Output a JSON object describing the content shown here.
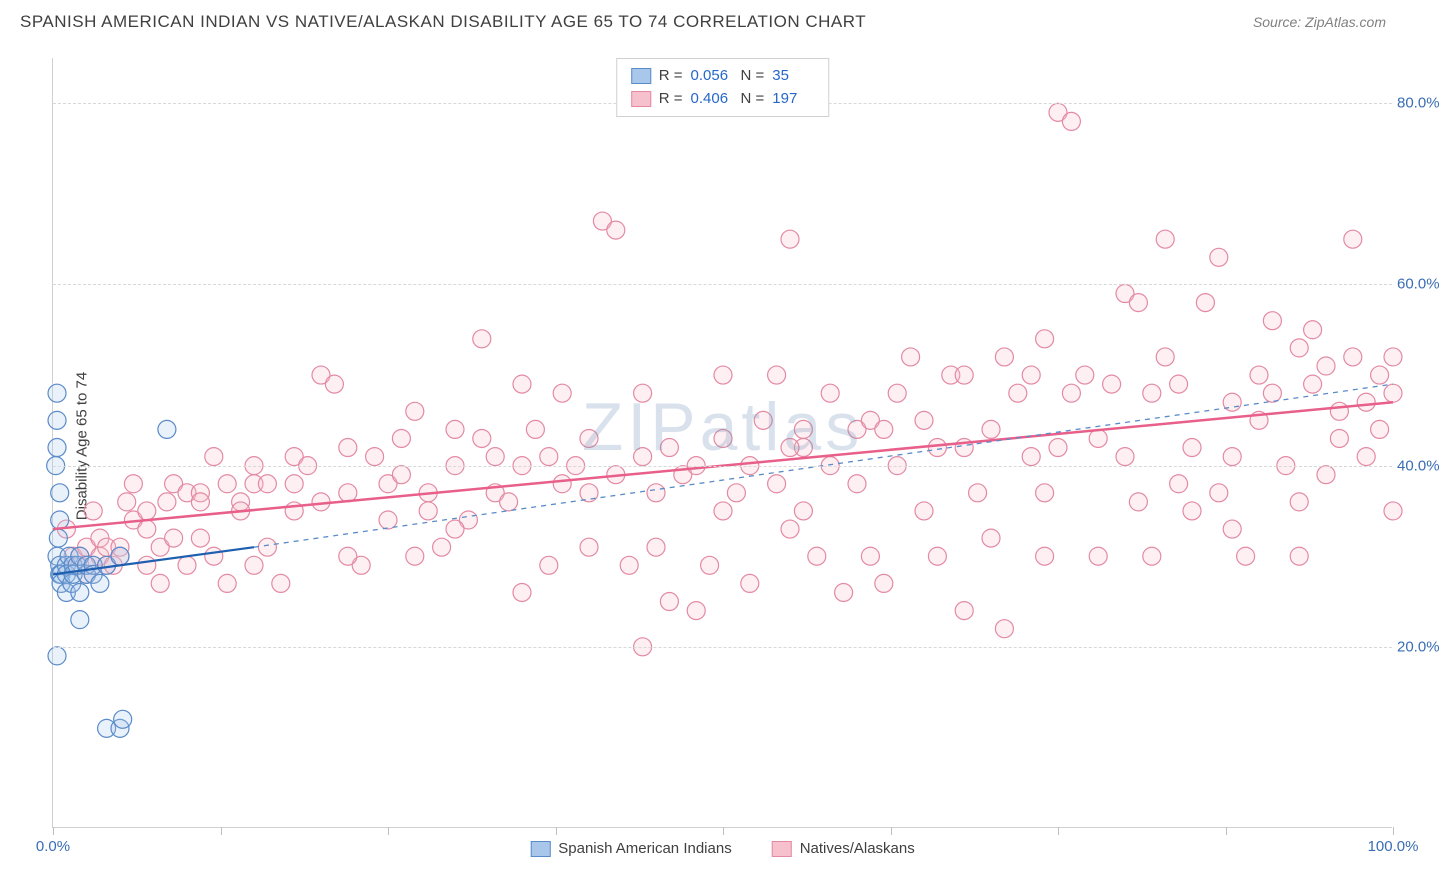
{
  "header": {
    "title": "SPANISH AMERICAN INDIAN VS NATIVE/ALASKAN DISABILITY AGE 65 TO 74 CORRELATION CHART",
    "source_label": "Source:",
    "source_value": "ZipAtlas.com"
  },
  "chart": {
    "type": "scatter",
    "ylabel": "Disability Age 65 to 74",
    "watermark": "ZIPatlas",
    "xlim": [
      0,
      100
    ],
    "ylim": [
      0,
      85
    ],
    "y_gridlines": [
      20,
      40,
      60,
      80
    ],
    "y_tick_labels": [
      "20.0%",
      "40.0%",
      "60.0%",
      "80.0%"
    ],
    "x_ticks": [
      0,
      12.5,
      25,
      37.5,
      50,
      62.5,
      75,
      87.5,
      100
    ],
    "x_tick_labels_show": {
      "0": "0.0%",
      "100": "100.0%"
    },
    "background_color": "#ffffff",
    "grid_color": "#d8d8d8",
    "axis_color": "#d0d0d0",
    "tick_label_color": "#3a6db3",
    "marker_radius": 9,
    "marker_stroke_width": 1.2,
    "marker_fill_opacity": 0.25,
    "series": [
      {
        "key": "spanish",
        "label": "Spanish American Indians",
        "color_fill": "#a9c7ea",
        "color_stroke": "#5a8bc9",
        "r": "0.056",
        "n": "35",
        "trend": {
          "x1": 0,
          "y1": 28,
          "x2": 15,
          "y2": 31,
          "color": "#1f5fb0",
          "dash": "none",
          "width": 2.2
        },
        "trend_ext": {
          "x1": 15,
          "y1": 31,
          "x2": 100,
          "y2": 49,
          "color": "#5a8bc9",
          "dash": "5,5",
          "width": 1.3
        },
        "points": [
          [
            0.3,
            48
          ],
          [
            0.3,
            45
          ],
          [
            0.3,
            42
          ],
          [
            0.2,
            40
          ],
          [
            0.5,
            37
          ],
          [
            0.5,
            34
          ],
          [
            0.4,
            32
          ],
          [
            0.3,
            30
          ],
          [
            0.5,
            29
          ],
          [
            0.5,
            28
          ],
          [
            0.6,
            28
          ],
          [
            0.6,
            27
          ],
          [
            1,
            29
          ],
          [
            1,
            28
          ],
          [
            1,
            26
          ],
          [
            1.2,
            30
          ],
          [
            1.4,
            27
          ],
          [
            1.5,
            29
          ],
          [
            1.5,
            28
          ],
          [
            1.8,
            29
          ],
          [
            2,
            30
          ],
          [
            2,
            26
          ],
          [
            2,
            23
          ],
          [
            2.5,
            28
          ],
          [
            2.5,
            29
          ],
          [
            3,
            29
          ],
          [
            3,
            28
          ],
          [
            3.5,
            27
          ],
          [
            4,
            29
          ],
          [
            5,
            30
          ],
          [
            0.3,
            19
          ],
          [
            4,
            11
          ],
          [
            8.5,
            44
          ],
          [
            5,
            11
          ],
          [
            5.2,
            12
          ]
        ]
      },
      {
        "key": "natives",
        "label": "Natives/Alaskans",
        "color_fill": "#f7c0cd",
        "color_stroke": "#e38aa3",
        "r": "0.406",
        "n": "197",
        "trend": {
          "x1": 0,
          "y1": 33,
          "x2": 100,
          "y2": 47,
          "color": "#e85f8a",
          "dash": "none",
          "width": 2.5
        },
        "points": [
          [
            1,
            33
          ],
          [
            1.5,
            30
          ],
          [
            2,
            29
          ],
          [
            2,
            30
          ],
          [
            2.5,
            31
          ],
          [
            2.5,
            28
          ],
          [
            3,
            29
          ],
          [
            3,
            35
          ],
          [
            3.5,
            30
          ],
          [
            3.5,
            32
          ],
          [
            4,
            29
          ],
          [
            4,
            31
          ],
          [
            4.5,
            29
          ],
          [
            5,
            31
          ],
          [
            5,
            30
          ],
          [
            5.5,
            36
          ],
          [
            6,
            38
          ],
          [
            6,
            34
          ],
          [
            7,
            33
          ],
          [
            7,
            29
          ],
          [
            8,
            27
          ],
          [
            8,
            31
          ],
          [
            8.5,
            36
          ],
          [
            9,
            38
          ],
          [
            9,
            32
          ],
          [
            10,
            37
          ],
          [
            10,
            29
          ],
          [
            11,
            37
          ],
          [
            11,
            36
          ],
          [
            12,
            30
          ],
          [
            12,
            41
          ],
          [
            13,
            38
          ],
          [
            13,
            27
          ],
          [
            14,
            36
          ],
          [
            14,
            35
          ],
          [
            15,
            38
          ],
          [
            15,
            40
          ],
          [
            16,
            31
          ],
          [
            16,
            38
          ],
          [
            17,
            27
          ],
          [
            18,
            41
          ],
          [
            18,
            35
          ],
          [
            19,
            40
          ],
          [
            20,
            50
          ],
          [
            20,
            36
          ],
          [
            21,
            49
          ],
          [
            22,
            37
          ],
          [
            22,
            42
          ],
          [
            23,
            29
          ],
          [
            24,
            41
          ],
          [
            25,
            38
          ],
          [
            25,
            34
          ],
          [
            26,
            43
          ],
          [
            27,
            46
          ],
          [
            28,
            37
          ],
          [
            28,
            35
          ],
          [
            29,
            31
          ],
          [
            30,
            44
          ],
          [
            30,
            40
          ],
          [
            31,
            34
          ],
          [
            32,
            43
          ],
          [
            32,
            54
          ],
          [
            33,
            41
          ],
          [
            33,
            37
          ],
          [
            34,
            36
          ],
          [
            35,
            40
          ],
          [
            35,
            26
          ],
          [
            36,
            44
          ],
          [
            37,
            29
          ],
          [
            37,
            41
          ],
          [
            38,
            38
          ],
          [
            38,
            48
          ],
          [
            39,
            40
          ],
          [
            40,
            37
          ],
          [
            40,
            43
          ],
          [
            41,
            67
          ],
          [
            42,
            39
          ],
          [
            42,
            66
          ],
          [
            43,
            29
          ],
          [
            44,
            48
          ],
          [
            44,
            20
          ],
          [
            45,
            37
          ],
          [
            45,
            31
          ],
          [
            46,
            42
          ],
          [
            46,
            25
          ],
          [
            47,
            39
          ],
          [
            48,
            40
          ],
          [
            48,
            24
          ],
          [
            49,
            29
          ],
          [
            50,
            43
          ],
          [
            50,
            50
          ],
          [
            51,
            37
          ],
          [
            52,
            40
          ],
          [
            52,
            27
          ],
          [
            53,
            45
          ],
          [
            54,
            50
          ],
          [
            54,
            38
          ],
          [
            55,
            65
          ],
          [
            55,
            33
          ],
          [
            56,
            42
          ],
          [
            56,
            44
          ],
          [
            57,
            30
          ],
          [
            58,
            48
          ],
          [
            58,
            40
          ],
          [
            59,
            26
          ],
          [
            60,
            44
          ],
          [
            60,
            38
          ],
          [
            61,
            45
          ],
          [
            61,
            30
          ],
          [
            62,
            27
          ],
          [
            63,
            48
          ],
          [
            63,
            40
          ],
          [
            64,
            52
          ],
          [
            65,
            35
          ],
          [
            65,
            45
          ],
          [
            66,
            42
          ],
          [
            66,
            30
          ],
          [
            67,
            50
          ],
          [
            68,
            42
          ],
          [
            68,
            24
          ],
          [
            69,
            37
          ],
          [
            70,
            44
          ],
          [
            70,
            32
          ],
          [
            71,
            52
          ],
          [
            71,
            22
          ],
          [
            72,
            48
          ],
          [
            73,
            50
          ],
          [
            73,
            41
          ],
          [
            74,
            54
          ],
          [
            74,
            37
          ],
          [
            75,
            79
          ],
          [
            75,
            42
          ],
          [
            76,
            48
          ],
          [
            76,
            78
          ],
          [
            77,
            50
          ],
          [
            78,
            43
          ],
          [
            78,
            30
          ],
          [
            79,
            49
          ],
          [
            80,
            59
          ],
          [
            80,
            41
          ],
          [
            81,
            36
          ],
          [
            81,
            58
          ],
          [
            82,
            48
          ],
          [
            83,
            65
          ],
          [
            83,
            52
          ],
          [
            84,
            49
          ],
          [
            84,
            38
          ],
          [
            85,
            42
          ],
          [
            85,
            35
          ],
          [
            86,
            58
          ],
          [
            87,
            63
          ],
          [
            87,
            37
          ],
          [
            88,
            47
          ],
          [
            88,
            41
          ],
          [
            89,
            30
          ],
          [
            90,
            50
          ],
          [
            90,
            45
          ],
          [
            91,
            56
          ],
          [
            91,
            48
          ],
          [
            92,
            40
          ],
          [
            93,
            53
          ],
          [
            93,
            36
          ],
          [
            94,
            49
          ],
          [
            94,
            55
          ],
          [
            95,
            39
          ],
          [
            95,
            51
          ],
          [
            96,
            46
          ],
          [
            96,
            43
          ],
          [
            97,
            52
          ],
          [
            97,
            65
          ],
          [
            98,
            47
          ],
          [
            98,
            41
          ],
          [
            99,
            50
          ],
          [
            99,
            44
          ],
          [
            100,
            48
          ],
          [
            100,
            35
          ],
          [
            100,
            52
          ],
          [
            7,
            35
          ],
          [
            15,
            29
          ],
          [
            22,
            30
          ],
          [
            26,
            39
          ],
          [
            30,
            33
          ],
          [
            35,
            49
          ],
          [
            44,
            41
          ],
          [
            50,
            35
          ],
          [
            56,
            35
          ],
          [
            62,
            44
          ],
          [
            68,
            50
          ],
          [
            74,
            30
          ],
          [
            82,
            30
          ],
          [
            88,
            33
          ],
          [
            93,
            30
          ],
          [
            11,
            32
          ],
          [
            18,
            38
          ],
          [
            27,
            30
          ],
          [
            40,
            31
          ],
          [
            55,
            42
          ]
        ]
      }
    ]
  },
  "legend": {
    "r_label": "R =",
    "n_label": "N ="
  }
}
